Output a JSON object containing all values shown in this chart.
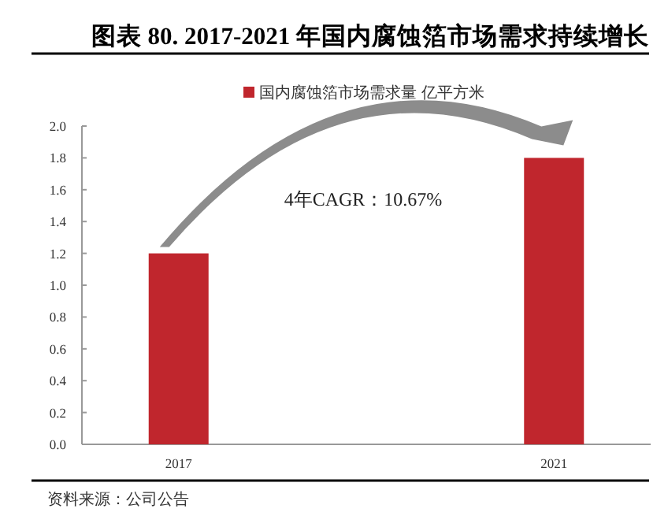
{
  "chart_data": {
    "type": "bar",
    "title": "图表 80. 2017-2021 年国内腐蚀箔市场需求持续增长",
    "categories": [
      "2017",
      "2021"
    ],
    "series": [
      {
        "name": "国内腐蚀箔市场需求量 亿平方米",
        "color": "#c0262d",
        "values": [
          1.2,
          1.8
        ]
      }
    ],
    "ylim": [
      0,
      2
    ],
    "yticks": [
      {
        "value": 0,
        "label": "0.0"
      },
      {
        "value": 0.2,
        "label": "0.2"
      },
      {
        "value": 0.4,
        "label": "0.4"
      },
      {
        "value": 0.6,
        "label": "0.6"
      },
      {
        "value": 0.8,
        "label": "0.8"
      },
      {
        "value": 1,
        "label": "1.0"
      },
      {
        "value": 1.2,
        "label": "1.2"
      },
      {
        "value": 1.4,
        "label": "1.4"
      },
      {
        "value": 1.6,
        "label": "1.6"
      },
      {
        "value": 1.8,
        "label": "1.8"
      },
      {
        "value": 2,
        "label": "2.0"
      }
    ],
    "legend": "top",
    "annotations": [
      "4年CAGR：10.67%",
      "资料来源：公司公告"
    ]
  }
}
